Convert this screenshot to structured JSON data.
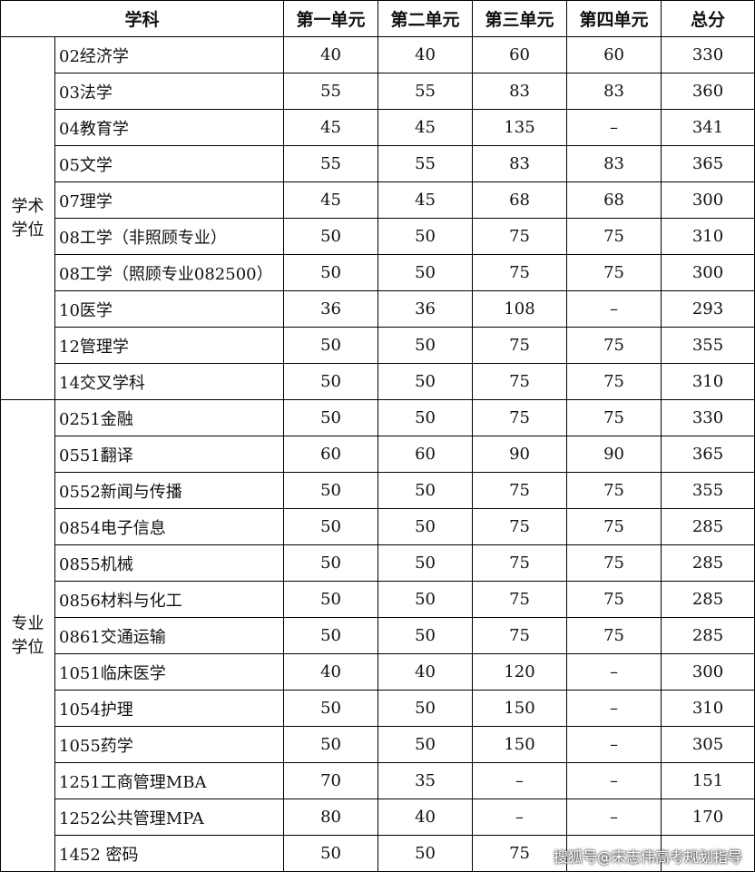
{
  "header": {
    "columns": [
      "学科",
      "第一单元",
      "第二单元",
      "第三单元",
      "第四单元",
      "总分"
    ]
  },
  "groups": [
    {
      "label": "学术学位",
      "rows": [
        [
          "02经济学",
          40,
          40,
          60,
          60,
          330
        ],
        [
          "03法学",
          55,
          55,
          83,
          83,
          360
        ],
        [
          "04教育学",
          45,
          45,
          135,
          "–",
          341
        ],
        [
          "05文学",
          55,
          55,
          83,
          83,
          365
        ],
        [
          "07理学",
          45,
          45,
          68,
          68,
          300
        ],
        [
          "08工学（非照顾专业）",
          50,
          50,
          75,
          75,
          310
        ],
        [
          "08工学（照顾专业082500）",
          50,
          50,
          75,
          75,
          300
        ],
        [
          "10医学",
          36,
          36,
          108,
          "–",
          293
        ],
        [
          "12管理学",
          50,
          50,
          75,
          75,
          355
        ],
        [
          "14交叉学科",
          50,
          50,
          75,
          75,
          310
        ]
      ]
    },
    {
      "label": "专业学位",
      "rows": [
        [
          "0251金融",
          50,
          50,
          75,
          75,
          330
        ],
        [
          "0551翻译",
          60,
          60,
          90,
          90,
          365
        ],
        [
          "0552新闻与传播",
          50,
          50,
          75,
          75,
          355
        ],
        [
          "0854电子信息",
          50,
          50,
          75,
          75,
          285
        ],
        [
          "0855机械",
          50,
          50,
          75,
          75,
          285
        ],
        [
          "0856材料与化工",
          50,
          50,
          75,
          75,
          285
        ],
        [
          "0861交通运输",
          50,
          50,
          75,
          75,
          285
        ],
        [
          "1051临床医学",
          40,
          40,
          120,
          "–",
          300
        ],
        [
          "1054护理",
          50,
          50,
          150,
          "–",
          310
        ],
        [
          "1055药学",
          50,
          50,
          150,
          "–",
          305
        ],
        [
          "1251工商管理MBA",
          70,
          35,
          "–",
          "–",
          151
        ],
        [
          "1252公共管理MPA",
          80,
          40,
          "–",
          "–",
          170
        ],
        [
          "1452 密码",
          50,
          50,
          75,
          null,
          null
        ]
      ]
    }
  ],
  "watermark": "搜狐号@宋志伟高考规划指导"
}
